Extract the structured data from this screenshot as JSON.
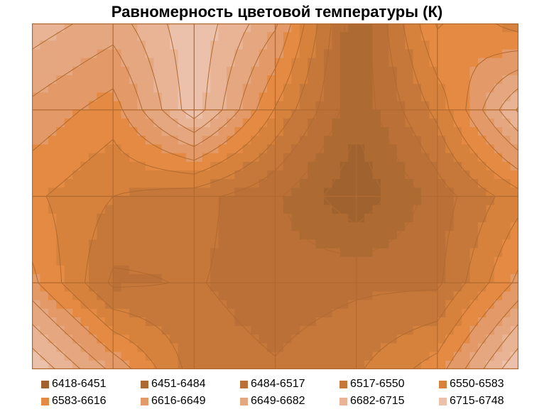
{
  "chart_data": {
    "type": "heatmap",
    "title": "Равномерность цветовой температуры (К)",
    "xlabel": "",
    "ylabel": "",
    "legend_placement": "bottom",
    "grid": true,
    "grid_size": {
      "cols": 7,
      "rows": 5
    },
    "x": [
      1,
      2,
      3,
      4,
      5,
      6,
      7
    ],
    "y": [
      1,
      2,
      3,
      4,
      5
    ],
    "z": [
      [
        6700,
        6665,
        6740,
        6655,
        6455,
        6620,
        6568
      ],
      [
        6640,
        6600,
        6736,
        6580,
        6460,
        6560,
        6720
      ],
      [
        6590,
        6550,
        6530,
        6490,
        6424,
        6500,
        6570
      ],
      [
        6625,
        6510,
        6520,
        6500,
        6510,
        6510,
        6625
      ],
      [
        6745,
        6640,
        6535,
        6520,
        6545,
        6600,
        6745
      ]
    ],
    "levels": [
      {
        "label": "6418-6451",
        "min": 6418,
        "max": 6451,
        "color": "#a0632f"
      },
      {
        "label": "6451-6484",
        "min": 6451,
        "max": 6484,
        "color": "#ad6a33"
      },
      {
        "label": "6484-6517",
        "min": 6484,
        "max": 6517,
        "color": "#bb7037"
      },
      {
        "label": "6517-6550",
        "min": 6517,
        "max": 6550,
        "color": "#c6783a"
      },
      {
        "label": "6550-6583",
        "min": 6550,
        "max": 6583,
        "color": "#d6823d"
      },
      {
        "label": "6583-6616",
        "min": 6583,
        "max": 6616,
        "color": "#e58a42"
      },
      {
        "label": "6616-6649",
        "min": 6616,
        "max": 6649,
        "color": "#e49a68"
      },
      {
        "label": "6649-6682",
        "min": 6649,
        "max": 6682,
        "color": "#e5a77f"
      },
      {
        "label": "6682-6715",
        "min": 6682,
        "max": 6715,
        "color": "#e8b495"
      },
      {
        "label": "6715-6748",
        "min": 6715,
        "max": 6748,
        "color": "#ecc1ab"
      }
    ],
    "line_color": "#b06a30"
  }
}
